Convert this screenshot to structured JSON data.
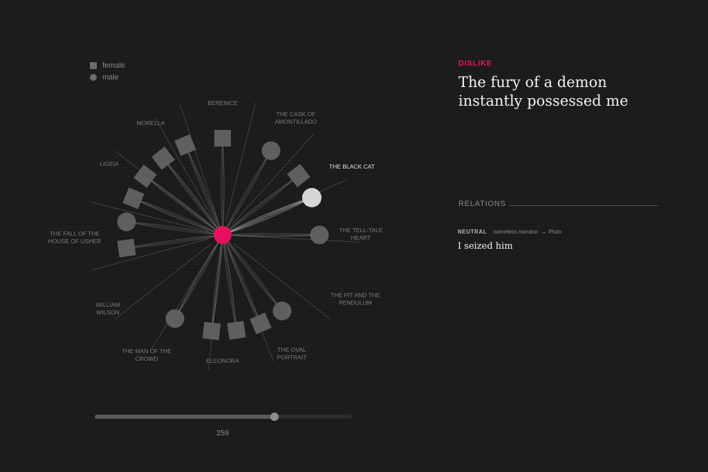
{
  "legend": {
    "female_label": "female",
    "male_label": "male"
  },
  "diagram": {
    "center_character": "nameless narrator",
    "colors": {
      "center": "#e5105e",
      "node": "#5f5f5f",
      "selected_node": "#d6d6d6",
      "label": "#7d7d7d",
      "selected_label": "#e6e6e6",
      "spoke": "#4e4e4e"
    },
    "stories": [
      {
        "label": "BERENICE",
        "lines": [
          "BERENICE"
        ]
      },
      {
        "label": "THE CASK OF AMONTILLADO",
        "lines": [
          "THE CASK OF",
          "AMONTILLADO"
        ]
      },
      {
        "label": "THE BLACK CAT",
        "lines": [
          "THE BLACK CAT"
        ],
        "selected": true
      },
      {
        "label": "THE TELL-TALE HEART",
        "lines": [
          "THE TELL-TALE",
          "HEART"
        ]
      },
      {
        "label": "THE PIT AND THE PENDULUM",
        "lines": [
          "THE PIT AND THE",
          "PENDULUM"
        ]
      },
      {
        "label": "THE OVAL PORTRAIT",
        "lines": [
          "THE OVAL",
          "PORTRAIT"
        ]
      },
      {
        "label": "ELEONORA",
        "lines": [
          "ELEONORA"
        ]
      },
      {
        "label": "THE MAN OF THE CROWD",
        "lines": [
          "THE MAN OF THE",
          "CROWD"
        ]
      },
      {
        "label": "WILLIAM WILSON",
        "lines": [
          "WILLIAM",
          "WILSON"
        ]
      },
      {
        "label": "THE FALL OF THE HOUSE OF USHER",
        "lines": [
          "THE FALL OF THE",
          "HOUSE OF USHER"
        ]
      },
      {
        "label": "LIGEIA",
        "lines": [
          "LIGEIA"
        ]
      },
      {
        "label": "MORELLA",
        "lines": [
          "MORELLA"
        ]
      }
    ],
    "characters": [
      {
        "story": "BERENICE",
        "gender": "female"
      },
      {
        "story": "THE CASK OF AMONTILLADO",
        "gender": "male"
      },
      {
        "story": "THE BLACK CAT",
        "gender": "female"
      },
      {
        "story": "THE BLACK CAT",
        "gender": "male",
        "selected": true
      },
      {
        "story": "THE TELL-TALE HEART",
        "gender": "male"
      },
      {
        "story": "THE OVAL PORTRAIT",
        "gender": "male"
      },
      {
        "story": "THE OVAL PORTRAIT",
        "gender": "female"
      },
      {
        "story": "ELEONORA",
        "gender": "female"
      },
      {
        "story": "ELEONORA",
        "gender": "female"
      },
      {
        "story": "THE MAN OF THE CROWD",
        "gender": "male"
      },
      {
        "story": "THE FALL OF THE HOUSE OF USHER",
        "gender": "female"
      },
      {
        "story": "THE FALL OF THE HOUSE OF USHER",
        "gender": "male"
      },
      {
        "story": "LIGEIA",
        "gender": "female"
      },
      {
        "story": "LIGEIA",
        "gender": "female"
      },
      {
        "story": "MORELLA",
        "gender": "female"
      },
      {
        "story": "MORELLA",
        "gender": "female"
      }
    ]
  },
  "slider": {
    "value": 259,
    "label": "259",
    "fill_fraction": 0.7
  },
  "detail": {
    "kind": "DISLIKE",
    "quote": "The fury of a demon instantly possessed me"
  },
  "relations": {
    "title": "RELATIONS",
    "items": [
      {
        "type": "NEUTRAL",
        "from": "nameless narrator",
        "to": "Pluto",
        "text": "I seized him"
      }
    ]
  }
}
